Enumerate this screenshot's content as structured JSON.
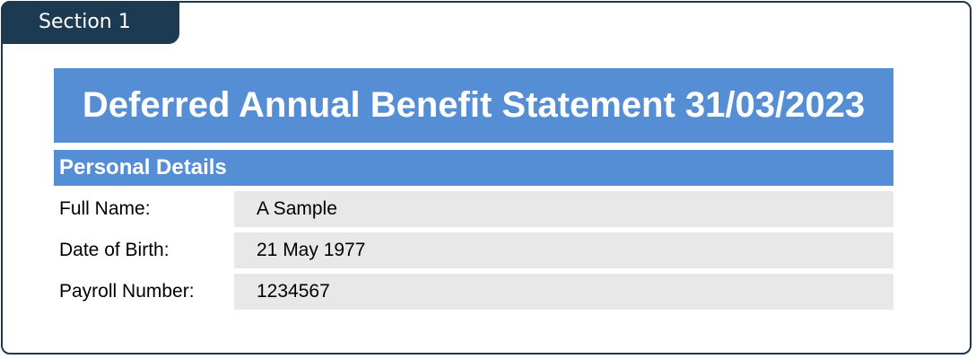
{
  "section": {
    "label": "Section 1"
  },
  "header": {
    "title": "Deferred Annual Benefit Statement 31/03/2023"
  },
  "personal_details": {
    "heading": "Personal Details",
    "rows": [
      [
        "Full Name:",
        "A Sample"
      ],
      [
        "Date of Birth:",
        "21 May 1977"
      ],
      [
        "Payroll Number:",
        "1234567"
      ]
    ]
  }
}
